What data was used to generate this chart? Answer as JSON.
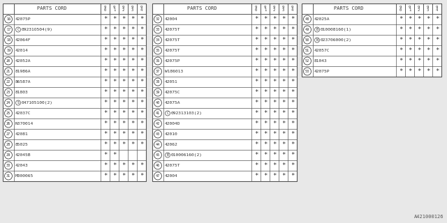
{
  "bg_color": "#e8e8e8",
  "table_bg": "#ffffff",
  "border_color": "#666666",
  "text_color": "#333333",
  "ref_text": "A421000126",
  "col_headers": [
    "9\n0",
    "9\n1",
    "9\n2",
    "9\n3",
    "9\n4"
  ],
  "tables": [
    {
      "rows": [
        {
          "num": "16",
          "part": "42075P",
          "prefix": "",
          "stars": [
            1,
            1,
            1,
            1,
            1
          ]
        },
        {
          "num": "17",
          "part": "09231O504(9)",
          "prefix": "C",
          "stars": [
            1,
            1,
            1,
            1,
            1
          ]
        },
        {
          "num": "18",
          "part": "42064F",
          "prefix": "",
          "stars": [
            1,
            1,
            1,
            1,
            1
          ]
        },
        {
          "num": "19",
          "part": "42014",
          "prefix": "",
          "stars": [
            1,
            1,
            1,
            1,
            1
          ]
        },
        {
          "num": "20",
          "part": "42052A",
          "prefix": "",
          "stars": [
            1,
            1,
            1,
            1,
            1
          ]
        },
        {
          "num": "21",
          "part": "81986A",
          "prefix": "",
          "stars": [
            1,
            1,
            1,
            1,
            1
          ]
        },
        {
          "num": "22",
          "part": "86587A",
          "prefix": "",
          "stars": [
            1,
            1,
            1,
            1,
            1
          ]
        },
        {
          "num": "23",
          "part": "81803",
          "prefix": "",
          "stars": [
            1,
            1,
            1,
            1,
            1
          ]
        },
        {
          "num": "24",
          "part": "047105100(2)",
          "prefix": "S",
          "stars": [
            1,
            1,
            1,
            1,
            1
          ]
        },
        {
          "num": "25",
          "part": "42037C",
          "prefix": "",
          "stars": [
            1,
            1,
            1,
            1,
            1
          ]
        },
        {
          "num": "26",
          "part": "N370014",
          "prefix": "",
          "stars": [
            1,
            1,
            1,
            1,
            1
          ]
        },
        {
          "num": "27",
          "part": "42081",
          "prefix": "",
          "stars": [
            1,
            1,
            1,
            1,
            1
          ]
        },
        {
          "num": "28",
          "part": "85025",
          "prefix": "",
          "stars": [
            1,
            1,
            1,
            1,
            1
          ]
        },
        {
          "num": "29",
          "part": "42045B",
          "prefix": "",
          "stars": [
            1,
            1,
            0,
            0,
            0
          ]
        },
        {
          "num": "30",
          "part": "42043",
          "prefix": "",
          "stars": [
            1,
            1,
            1,
            1,
            1
          ]
        },
        {
          "num": "31",
          "part": "M000065",
          "prefix": "",
          "stars": [
            1,
            1,
            1,
            1,
            1
          ]
        }
      ]
    },
    {
      "rows": [
        {
          "num": "32",
          "part": "42004",
          "prefix": "",
          "stars": [
            1,
            1,
            1,
            1,
            1
          ]
        },
        {
          "num": "33",
          "part": "42075T",
          "prefix": "",
          "stars": [
            1,
            1,
            1,
            1,
            1
          ]
        },
        {
          "num": "34",
          "part": "42075T",
          "prefix": "",
          "stars": [
            1,
            1,
            1,
            1,
            1
          ]
        },
        {
          "num": "35",
          "part": "42075T",
          "prefix": "",
          "stars": [
            1,
            1,
            1,
            1,
            1
          ]
        },
        {
          "num": "36",
          "part": "42075P",
          "prefix": "",
          "stars": [
            1,
            1,
            1,
            1,
            1
          ]
        },
        {
          "num": "37",
          "part": "W186013",
          "prefix": "",
          "stars": [
            1,
            1,
            1,
            1,
            1
          ]
        },
        {
          "num": "38",
          "part": "42051",
          "prefix": "",
          "stars": [
            1,
            1,
            1,
            1,
            1
          ]
        },
        {
          "num": "39",
          "part": "42075C",
          "prefix": "",
          "stars": [
            1,
            1,
            1,
            1,
            1
          ]
        },
        {
          "num": "40",
          "part": "42075A",
          "prefix": "",
          "stars": [
            1,
            1,
            1,
            1,
            1
          ]
        },
        {
          "num": "41",
          "part": "092313103(2)",
          "prefix": "C",
          "stars": [
            1,
            1,
            1,
            1,
            1
          ]
        },
        {
          "num": "42",
          "part": "42004D",
          "prefix": "",
          "stars": [
            1,
            1,
            1,
            1,
            1
          ]
        },
        {
          "num": "43",
          "part": "42010",
          "prefix": "",
          "stars": [
            1,
            1,
            1,
            1,
            1
          ]
        },
        {
          "num": "44",
          "part": "42062",
          "prefix": "",
          "stars": [
            1,
            1,
            1,
            1,
            1
          ]
        },
        {
          "num": "45",
          "part": "010006160(2)",
          "prefix": "B",
          "stars": [
            1,
            1,
            1,
            1,
            1
          ]
        },
        {
          "num": "46",
          "part": "42075T",
          "prefix": "",
          "stars": [
            1,
            1,
            1,
            1,
            1
          ]
        },
        {
          "num": "47",
          "part": "42004",
          "prefix": "",
          "stars": [
            1,
            1,
            1,
            1,
            1
          ]
        }
      ]
    },
    {
      "rows": [
        {
          "num": "48",
          "part": "42025A",
          "prefix": "",
          "stars": [
            1,
            1,
            1,
            1,
            1
          ]
        },
        {
          "num": "49",
          "part": "010008160(1)",
          "prefix": "B",
          "stars": [
            1,
            1,
            1,
            1,
            1
          ]
        },
        {
          "num": "50",
          "part": "023706000(2)",
          "prefix": "N",
          "stars": [
            1,
            1,
            1,
            1,
            1
          ]
        },
        {
          "num": "51",
          "part": "42057C",
          "prefix": "",
          "stars": [
            1,
            1,
            1,
            1,
            1
          ]
        },
        {
          "num": "52",
          "part": "81043",
          "prefix": "",
          "stars": [
            1,
            1,
            1,
            1,
            1
          ]
        },
        {
          "num": "53",
          "part": "42075P",
          "prefix": "",
          "stars": [
            1,
            1,
            1,
            1,
            1
          ]
        }
      ]
    }
  ]
}
